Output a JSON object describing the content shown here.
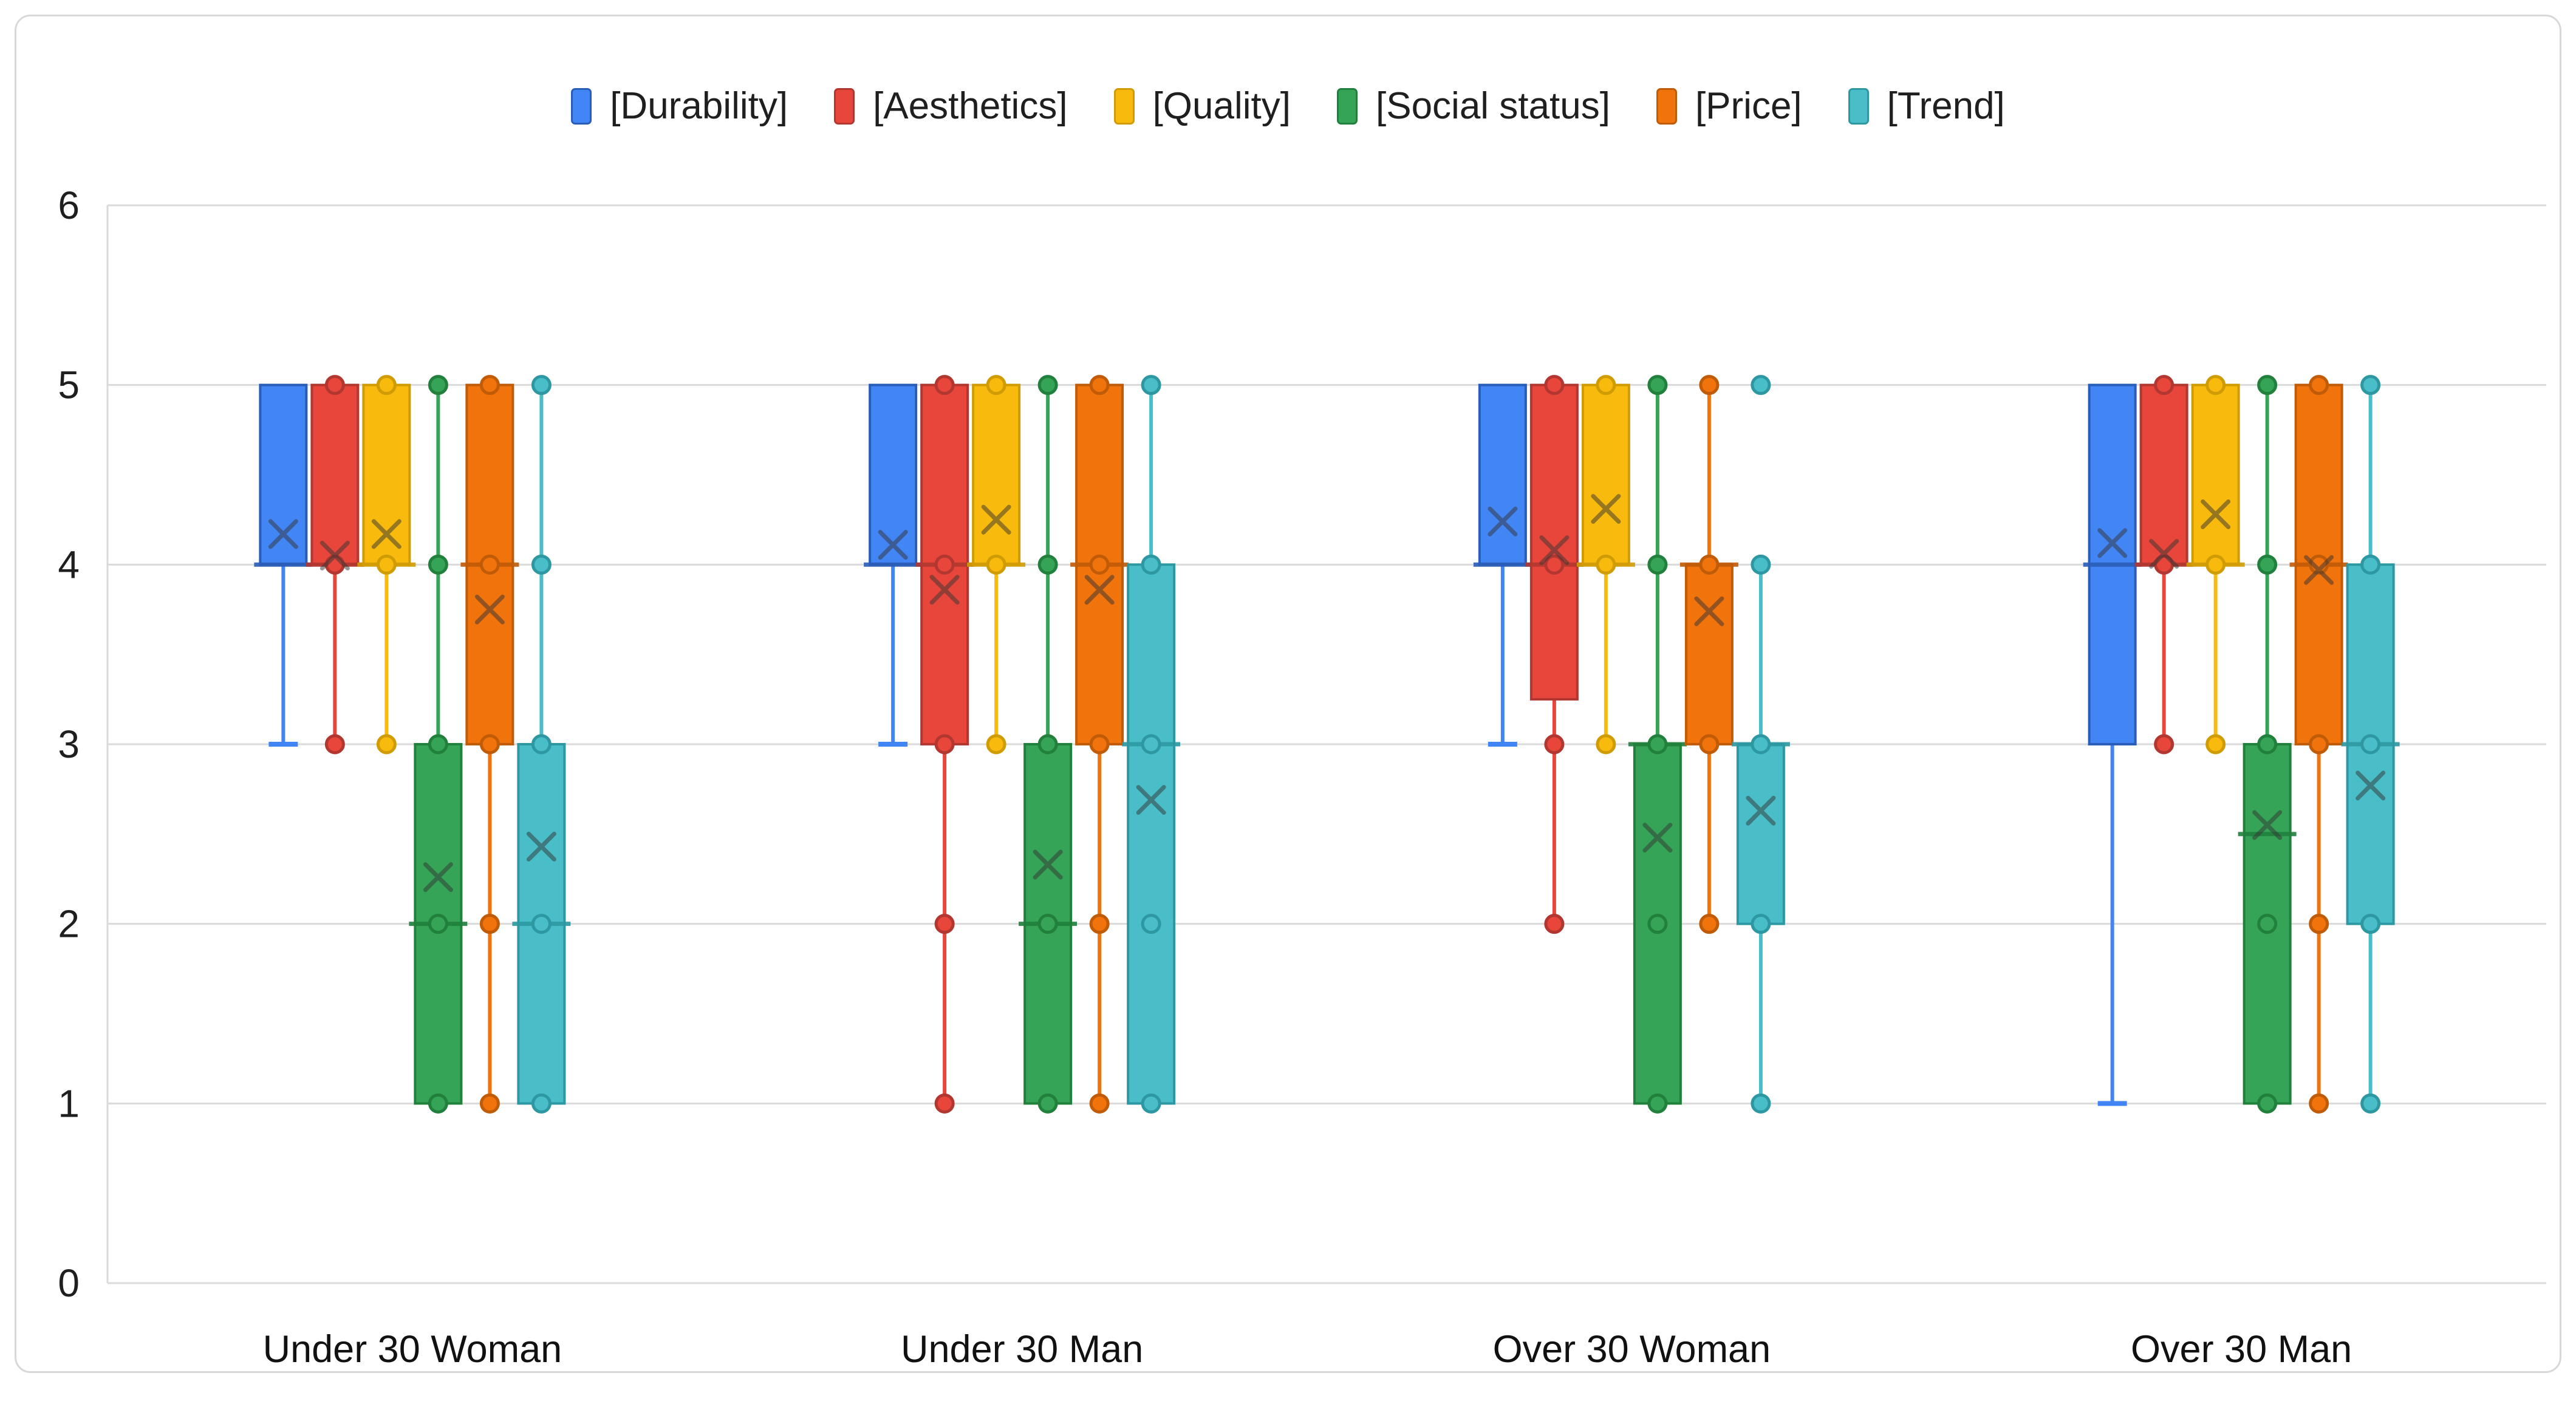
{
  "chart_data": {
    "type": "box",
    "title": "",
    "categories": [
      "Under 30 Woman",
      "Under 30 Man",
      "Over 30 Woman",
      "Over 30 Man"
    ],
    "ylim": [
      0,
      6
    ],
    "yticks": [
      0,
      1,
      2,
      3,
      4,
      5,
      6
    ],
    "grid": true,
    "legend_position": "top-center",
    "marker_note": "x = mean, horizontal bar = median, circles = data points",
    "series": [
      {
        "name": "[Durability]",
        "fill": "#4285F4",
        "dark": "#2A5DB8",
        "boxes": [
          {
            "group": "Under 30 Woman",
            "q1": 4,
            "median": 4,
            "q3": 5,
            "mean": 4.17,
            "whisker_low": 3,
            "whisker_high": 5,
            "cap_low": true,
            "points": []
          },
          {
            "group": "Under 30 Man",
            "q1": 4,
            "median": 4,
            "q3": 5,
            "mean": 4.11,
            "whisker_low": 3,
            "whisker_high": 5,
            "cap_low": true,
            "points": []
          },
          {
            "group": "Over 30 Woman",
            "q1": 4,
            "median": 4,
            "q3": 5,
            "mean": 4.24,
            "whisker_low": 3,
            "whisker_high": 5,
            "cap_low": true,
            "points": []
          },
          {
            "group": "Over 30 Man",
            "q1": 3,
            "median": 4,
            "q3": 5,
            "mean": 4.12,
            "whisker_low": 1,
            "whisker_high": 5,
            "cap_low": true,
            "points": []
          }
        ]
      },
      {
        "name": "[Aesthetics]",
        "fill": "#E8463A",
        "dark": "#B23730",
        "boxes": [
          {
            "group": "Under 30 Woman",
            "q1": 4,
            "median": 4,
            "q3": 5,
            "mean": 4.05,
            "whisker_low": 3,
            "whisker_high": 5,
            "cap_low": false,
            "points": [
              5,
              4,
              3
            ]
          },
          {
            "group": "Under 30 Man",
            "q1": 3,
            "median": 4,
            "q3": 5,
            "mean": 3.86,
            "whisker_low": 1,
            "whisker_high": 5,
            "cap_low": false,
            "points": [
              5,
              4,
              3,
              2,
              1
            ]
          },
          {
            "group": "Over 30 Woman",
            "q1": 3.25,
            "median": 4,
            "q3": 5,
            "mean": 4.08,
            "whisker_low": 2,
            "whisker_high": 5,
            "cap_low": false,
            "points": [
              5,
              4,
              3,
              2
            ]
          },
          {
            "group": "Over 30 Man",
            "q1": 4,
            "median": 4,
            "q3": 5,
            "mean": 4.06,
            "whisker_low": 3,
            "whisker_high": 5,
            "cap_low": false,
            "points": [
              5,
              4,
              3
            ]
          }
        ]
      },
      {
        "name": "[Quality]",
        "fill": "#F8BA0D",
        "dark": "#D09C06",
        "boxes": [
          {
            "group": "Under 30 Woman",
            "q1": 4,
            "median": 4,
            "q3": 5,
            "mean": 4.17,
            "whisker_low": 3,
            "whisker_high": 5,
            "cap_low": false,
            "points": [
              5,
              4,
              3
            ]
          },
          {
            "group": "Under 30 Man",
            "q1": 4,
            "median": 4,
            "q3": 5,
            "mean": 4.25,
            "whisker_low": 3,
            "whisker_high": 5,
            "cap_low": false,
            "points": [
              5,
              4,
              3
            ]
          },
          {
            "group": "Over 30 Woman",
            "q1": 4,
            "median": 4,
            "q3": 5,
            "mean": 4.31,
            "whisker_low": 3,
            "whisker_high": 5,
            "cap_low": false,
            "points": [
              5,
              4,
              3
            ]
          },
          {
            "group": "Over 30 Man",
            "q1": 4,
            "median": 4,
            "q3": 5,
            "mean": 4.28,
            "whisker_low": 3,
            "whisker_high": 5,
            "cap_low": false,
            "points": [
              5,
              4,
              3
            ]
          }
        ]
      },
      {
        "name": "[Social status]",
        "fill": "#35A457",
        "dark": "#20803C",
        "boxes": [
          {
            "group": "Under 30 Woman",
            "q1": 1,
            "median": 2,
            "q3": 3,
            "mean": 2.26,
            "whisker_low": 1,
            "whisker_high": 5,
            "cap_low": false,
            "points": [
              5,
              4,
              3,
              2,
              1
            ]
          },
          {
            "group": "Under 30 Man",
            "q1": 1,
            "median": 2,
            "q3": 3,
            "mean": 2.33,
            "whisker_low": 1,
            "whisker_high": 5,
            "cap_low": false,
            "points": [
              5,
              4,
              3,
              2,
              1
            ]
          },
          {
            "group": "Over 30 Woman",
            "q1": 1,
            "median": 3,
            "q3": 3,
            "mean": 2.48,
            "whisker_low": 1,
            "whisker_high": 5,
            "cap_low": false,
            "points": [
              5,
              4,
              3,
              2,
              1
            ]
          },
          {
            "group": "Over 30 Man",
            "q1": 1,
            "median": 2.5,
            "q3": 3,
            "mean": 2.55,
            "whisker_low": 1,
            "whisker_high": 5,
            "cap_low": false,
            "points": [
              5,
              4,
              3,
              2,
              1
            ]
          }
        ]
      },
      {
        "name": "[Price]",
        "fill": "#F1730C",
        "dark": "#C05B08",
        "boxes": [
          {
            "group": "Under 30 Woman",
            "q1": 3,
            "median": 4,
            "q3": 5,
            "mean": 3.75,
            "whisker_low": 1,
            "whisker_high": 5,
            "cap_low": false,
            "points": [
              5,
              4,
              3,
              2,
              1
            ]
          },
          {
            "group": "Under 30 Man",
            "q1": 3,
            "median": 4,
            "q3": 5,
            "mean": 3.86,
            "whisker_low": 1,
            "whisker_high": 5,
            "cap_low": false,
            "points": [
              5,
              4,
              3,
              2,
              1
            ]
          },
          {
            "group": "Over 30 Woman",
            "q1": 3,
            "median": 4,
            "q3": 4,
            "mean": 3.74,
            "whisker_low": 2,
            "whisker_high": 5,
            "cap_low": false,
            "points": [
              5,
              4,
              3,
              2
            ]
          },
          {
            "group": "Over 30 Man",
            "q1": 3,
            "median": 4,
            "q3": 5,
            "mean": 3.97,
            "whisker_low": 1,
            "whisker_high": 5,
            "cap_low": false,
            "points": [
              5,
              4,
              3,
              2,
              1
            ]
          }
        ]
      },
      {
        "name": "[Trend]",
        "fill": "#49BEC8",
        "dark": "#2E98A2",
        "boxes": [
          {
            "group": "Under 30 Woman",
            "q1": 1,
            "median": 2,
            "q3": 3,
            "mean": 2.43,
            "whisker_low": 1,
            "whisker_high": 5,
            "cap_low": false,
            "points": [
              5,
              4,
              3,
              2,
              1
            ]
          },
          {
            "group": "Under 30 Man",
            "q1": 1,
            "median": 3,
            "q3": 4,
            "mean": 2.69,
            "whisker_low": 1,
            "whisker_high": 5,
            "cap_low": false,
            "points": [
              5,
              4,
              3,
              2,
              1
            ]
          },
          {
            "group": "Over 30 Woman",
            "q1": 2,
            "median": 3,
            "q3": 3,
            "mean": 2.63,
            "whisker_low": 1,
            "whisker_high": 4,
            "cap_low": false,
            "points": [
              5,
              4,
              3,
              2,
              1
            ]
          },
          {
            "group": "Over 30 Man",
            "q1": 2,
            "median": 3,
            "q3": 4,
            "mean": 2.77,
            "whisker_low": 1,
            "whisker_high": 5,
            "cap_low": false,
            "points": [
              5,
              4,
              3,
              2,
              1
            ]
          }
        ]
      }
    ]
  }
}
